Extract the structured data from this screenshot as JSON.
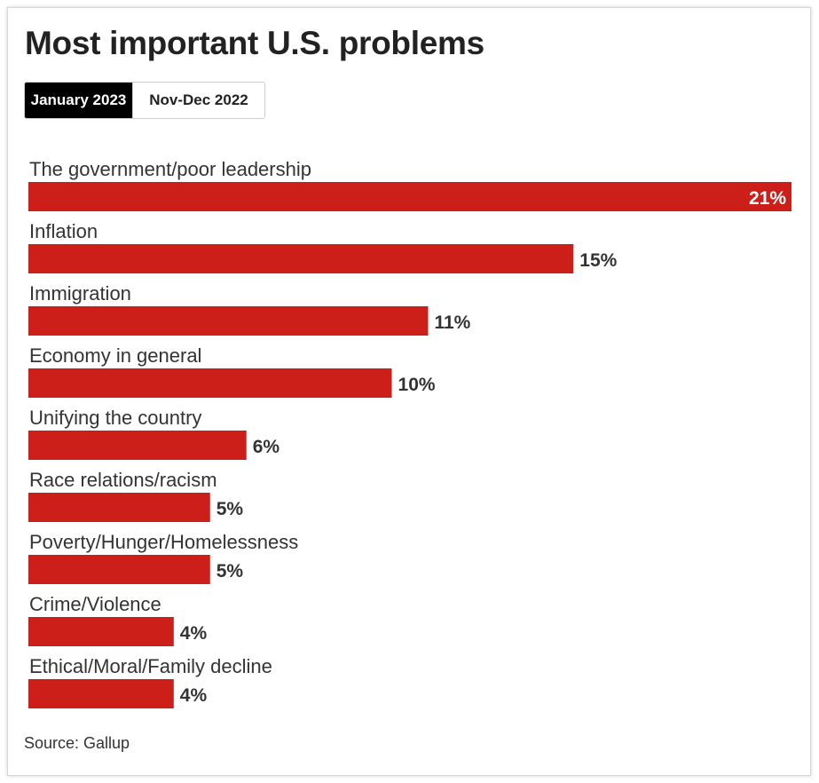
{
  "title": "Most important U.S. problems",
  "tabs": [
    {
      "label": "January 2023",
      "active": true
    },
    {
      "label": "Nov-Dec 2022",
      "active": false
    }
  ],
  "source": "Source: Gallup",
  "colors": {
    "bar": "#cc1f1a",
    "active_tab": "#000000"
  },
  "chart_data": {
    "type": "bar",
    "orientation": "horizontal",
    "title": "Most important U.S. problems",
    "categories": [
      "The government/poor leadership",
      "Inflation",
      "Immigration",
      "Economy in general",
      "Unifying the country",
      "Race relations/racism",
      "Poverty/Hunger/Homelessness",
      "Crime/Violence",
      "Ethical/Moral/Family decline"
    ],
    "values": [
      21,
      15,
      11,
      10,
      6,
      5,
      5,
      4,
      4
    ],
    "value_labels": [
      "21%",
      "15%",
      "11%",
      "10%",
      "6%",
      "5%",
      "5%",
      "4%",
      "4%"
    ],
    "xlim": [
      0,
      21
    ],
    "grid": false,
    "legend": "none"
  }
}
